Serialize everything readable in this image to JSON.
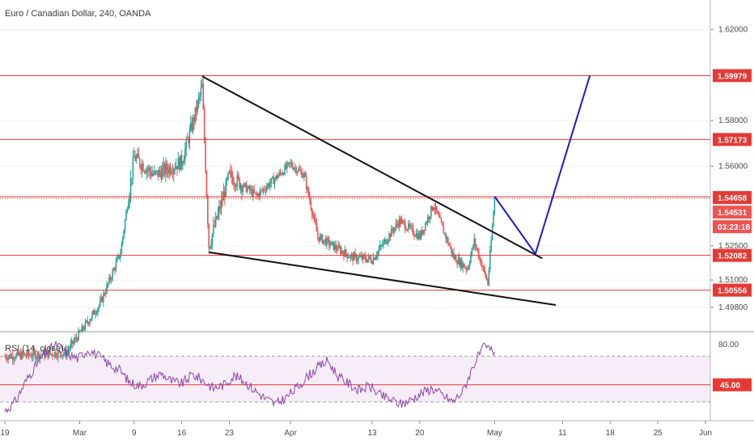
{
  "chart_data": [
    {
      "type": "candlestick",
      "title": "Euro / Canadian Dollar, 240, OANDA",
      "price_ticks": [
        "1.62000",
        "1.58000",
        "1.56000",
        "1.52500",
        "1.51000",
        "1.49800"
      ],
      "level_labels": [
        "1.59979",
        "1.57173",
        "1.54658",
        "1.54531",
        "03:23:18",
        "1.52082",
        "1.50556"
      ],
      "horizontal_levels": [
        1.59979,
        1.57173,
        1.54658,
        1.52082,
        1.50556
      ],
      "last_price": 1.54658,
      "x_tick_labels": [
        "19",
        "Mar",
        "9",
        "16",
        "23",
        "Apr",
        "13",
        "20",
        "May",
        "11",
        "18",
        "25",
        "Jun"
      ],
      "ylim": [
        1.488,
        1.633
      ],
      "candles_x_range": [
        "2020-02-19",
        "2020-05-01"
      ],
      "trendlines": [
        {
          "from": [
            "2020-03-19",
            1.5995
          ],
          "to": [
            "2020-05-08",
            1.5195
          ]
        },
        {
          "from": [
            "2020-03-20",
            1.5222
          ],
          "to": [
            "2020-05-10",
            1.499
          ]
        }
      ],
      "projection": [
        [
          "2020-05-01",
          1.5467
        ],
        [
          "2020-05-07",
          1.5215
        ],
        [
          "2020-05-15",
          1.5998
        ]
      ],
      "colors": {
        "up": "#26a69a",
        "down": "#ef5350",
        "level": "#e53935",
        "projection": "#1a1acd"
      }
    },
    {
      "type": "line",
      "title": "RSI (14, close)",
      "tick_labels": [
        "80.00",
        "45.00"
      ],
      "band": [
        30,
        70
      ],
      "reference_level": 45,
      "ylim": [
        15,
        90
      ],
      "approx_values": [
        22,
        30,
        48,
        62,
        74,
        80,
        72,
        68,
        76,
        70,
        63,
        58,
        47,
        44,
        50,
        55,
        48,
        46,
        54,
        49,
        42,
        45,
        53,
        48,
        40,
        33,
        28,
        34,
        42,
        52,
        60,
        66,
        52,
        46,
        40,
        44,
        36,
        32,
        28,
        32,
        38,
        42,
        36,
        30,
        40,
        63,
        78,
        74
      ],
      "colors": {
        "line": "#8e44ad",
        "band": "rgba(186,104,200,0.12)",
        "ref": "#e53935"
      }
    }
  ]
}
